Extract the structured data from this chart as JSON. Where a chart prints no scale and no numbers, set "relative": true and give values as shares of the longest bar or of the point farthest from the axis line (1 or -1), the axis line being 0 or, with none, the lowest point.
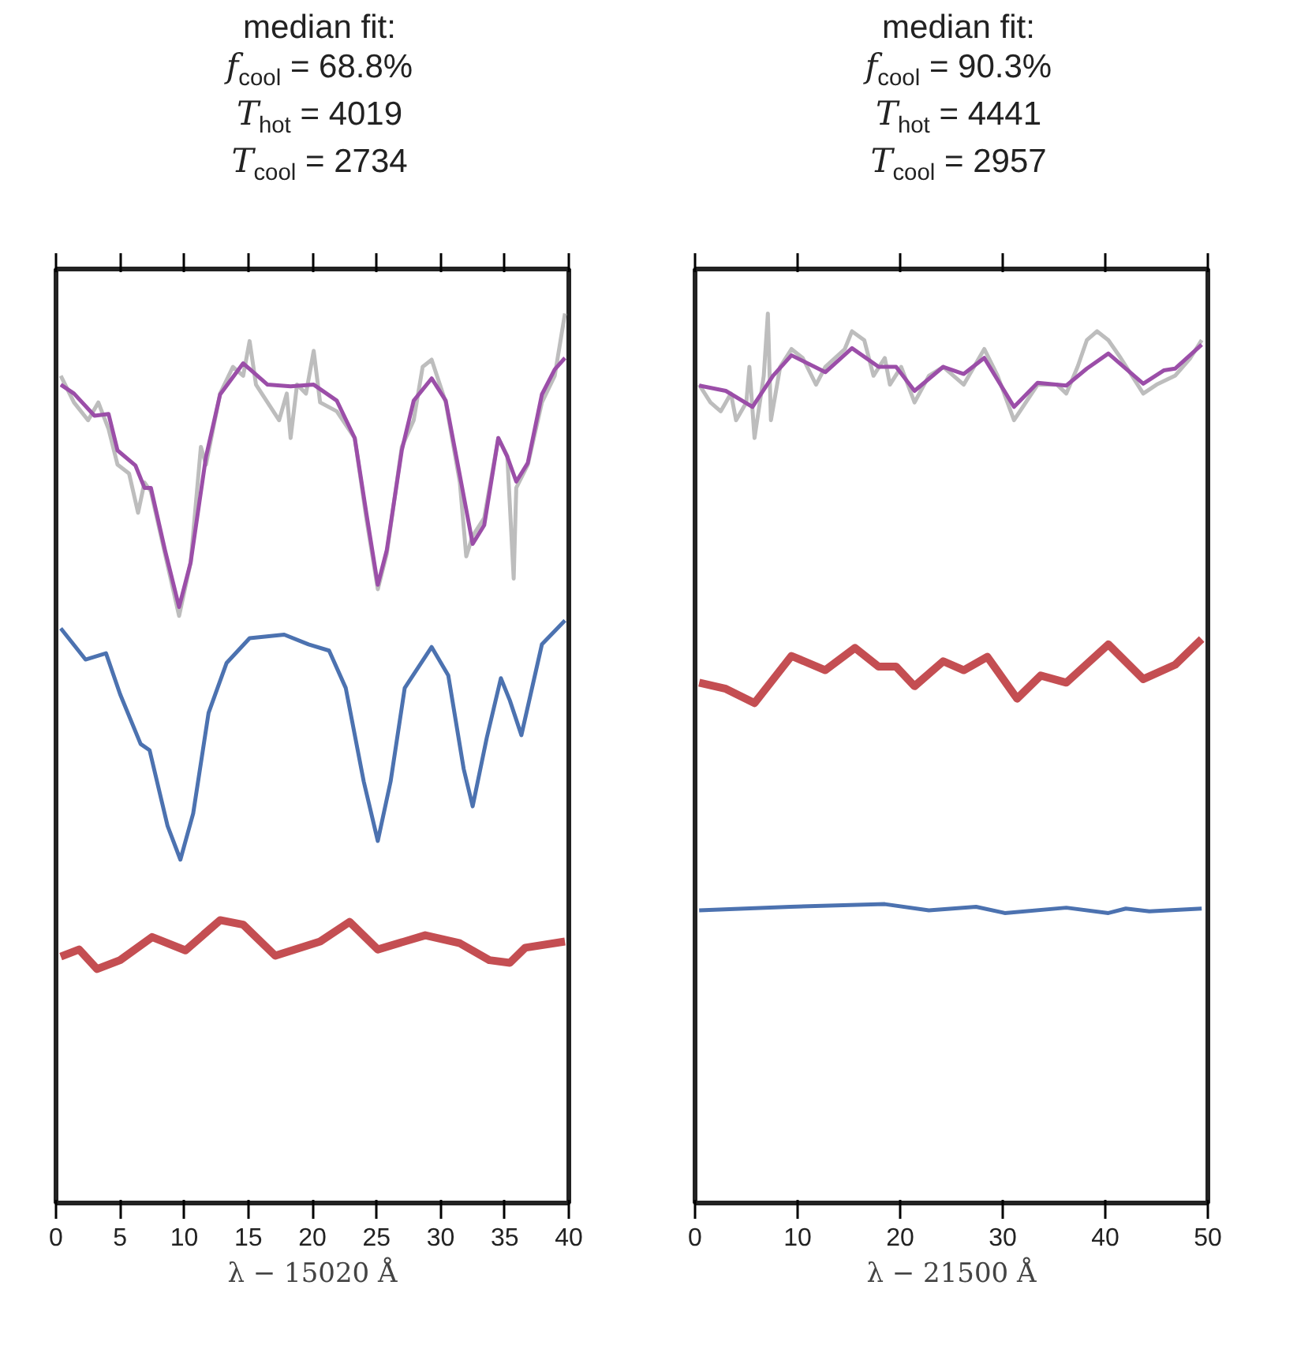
{
  "chart_data": [
    {
      "type": "line",
      "relative": true,
      "title": "median fit:",
      "subtitle": "f$_{cool}$ = 68.8%\nT$_{hot}$ = 4019\nT$_{cool}$ = 2734",
      "xlabel": "λ − 15020 Å",
      "xlim": [
        0,
        40
      ],
      "xticks": [
        0,
        5,
        10,
        15,
        20,
        25,
        30,
        35,
        40
      ],
      "tick_labels": "x",
      "grid": false,
      "series": [
        {
          "color": "#bdbdbd",
          "x": [
            0.37,
            1.4,
            2.5,
            3.3,
            4.1,
            4.8,
            5.7,
            6.4,
            6.9,
            7.4,
            8.5,
            9.6,
            10.5,
            11.3,
            11.7,
            12.8,
            13.8,
            14.6,
            15.1,
            15.6,
            16.5,
            17.4,
            18.0,
            18.3,
            18.8,
            19.5,
            20.1,
            20.6,
            21.9,
            23.3,
            24.2,
            25.1,
            25.8,
            26.97,
            27.9,
            28.6,
            29.3,
            30.4,
            31.5,
            32.0,
            32.5,
            33.4,
            34.5,
            35.2,
            35.7,
            35.9,
            36.8,
            37.9,
            38.9,
            39.7
          ],
          "values": [
            0.93,
            0.9,
            0.88,
            0.9,
            0.87,
            0.83,
            0.82,
            0.776,
            0.81,
            0.8,
            0.73,
            0.66,
            0.72,
            0.85,
            0.83,
            0.91,
            0.94,
            0.93,
            0.969,
            0.92,
            0.9,
            0.88,
            0.91,
            0.86,
            0.92,
            0.91,
            0.958,
            0.9,
            0.89,
            0.86,
            0.77,
            0.69,
            0.73,
            0.85,
            0.88,
            0.94,
            0.948,
            0.9,
            0.81,
            0.727,
            0.75,
            0.77,
            0.86,
            0.84,
            0.702,
            0.804,
            0.83,
            0.9,
            0.93,
            1.0
          ]
        },
        {
          "color": "#9b4ea8",
          "x": [
            0.37,
            1.4,
            3.0,
            4.1,
            4.8,
            6.2,
            6.9,
            7.4,
            8.5,
            9.6,
            10.5,
            11.7,
            12.8,
            14.6,
            16.5,
            18.3,
            20.1,
            21.9,
            23.3,
            24.2,
            25.1,
            25.8,
            26.97,
            27.9,
            29.3,
            30.4,
            31.5,
            32.5,
            33.4,
            34.5,
            35.2,
            35.9,
            36.8,
            37.9,
            38.9,
            39.7
          ],
          "values": [
            0.92,
            0.91,
            0.885,
            0.887,
            0.846,
            0.829,
            0.804,
            0.804,
            0.734,
            0.67,
            0.72,
            0.839,
            0.909,
            0.944,
            0.92,
            0.918,
            0.92,
            0.902,
            0.86,
            0.776,
            0.695,
            0.734,
            0.846,
            0.902,
            0.927,
            0.902,
            0.818,
            0.741,
            0.762,
            0.86,
            0.839,
            0.811,
            0.832,
            0.909,
            0.937,
            0.95
          ]
        },
        {
          "color": "#4c72b0",
          "x": [
            0.37,
            2.3,
            3.9,
            5.0,
            6.6,
            7.3,
            8.7,
            9.7,
            10.7,
            11.9,
            13.3,
            15.1,
            17.8,
            19.7,
            21.3,
            22.6,
            24.0,
            25.1,
            26.1,
            27.2,
            29.3,
            30.6,
            31.8,
            32.5,
            33.6,
            34.7,
            35.4,
            36.3,
            37.9,
            39.7
          ],
          "values": [
            0.646,
            0.611,
            0.618,
            0.572,
            0.516,
            0.509,
            0.424,
            0.386,
            0.438,
            0.551,
            0.607,
            0.635,
            0.639,
            0.628,
            0.621,
            0.579,
            0.474,
            0.407,
            0.474,
            0.579,
            0.625,
            0.593,
            0.488,
            0.446,
            0.523,
            0.59,
            0.565,
            0.526,
            0.628,
            0.655
          ]
        },
        {
          "color": "#c44e52",
          "x": [
            0.37,
            1.8,
            3.2,
            5.0,
            7.5,
            10.1,
            12.8,
            14.6,
            17.1,
            20.6,
            22.9,
            25.1,
            28.8,
            31.5,
            33.8,
            35.4,
            36.6,
            39.7
          ],
          "values": [
            0.277,
            0.285,
            0.263,
            0.273,
            0.299,
            0.284,
            0.318,
            0.313,
            0.278,
            0.294,
            0.316,
            0.285,
            0.301,
            0.292,
            0.273,
            0.27,
            0.287,
            0.294
          ]
        }
      ]
    },
    {
      "type": "line",
      "relative": true,
      "title": "median fit:",
      "subtitle": "f$_{cool}$ = 90.3%\nT$_{hot}$ = 4441\nT$_{cool}$ = 2957",
      "xlabel": "λ − 21500 Å",
      "xlim": [
        0,
        50
      ],
      "xticks": [
        0,
        10,
        20,
        30,
        40,
        50
      ],
      "tick_labels": "x",
      "grid": false,
      "series": [
        {
          "color": "#bdbdbd",
          "x": [
            0.4,
            1.5,
            2.5,
            3.5,
            4.0,
            5.0,
            5.3,
            5.8,
            6.7,
            7.1,
            7.4,
            8.3,
            9.4,
            10.5,
            11.8,
            12.7,
            14.6,
            15.3,
            16.5,
            17.4,
            18.5,
            19.0,
            20.1,
            21.4,
            22.8,
            24.2,
            26.2,
            28.2,
            29.5,
            31.1,
            33.4,
            35.3,
            36.2,
            37.3,
            38.2,
            39.2,
            40.3,
            41.5,
            43.7,
            45.0,
            46.8,
            48.3,
            49.4
          ],
          "values": [
            0.92,
            0.9,
            0.89,
            0.91,
            0.88,
            0.9,
            0.94,
            0.86,
            0.93,
            1.0,
            0.88,
            0.94,
            0.96,
            0.95,
            0.92,
            0.94,
            0.96,
            0.98,
            0.97,
            0.93,
            0.95,
            0.92,
            0.94,
            0.9,
            0.93,
            0.94,
            0.92,
            0.96,
            0.93,
            0.88,
            0.92,
            0.92,
            0.91,
            0.94,
            0.97,
            0.98,
            0.97,
            0.95,
            0.91,
            0.92,
            0.93,
            0.95,
            0.97
          ]
        },
        {
          "color": "#9b4ea8",
          "x": [
            0.4,
            3.0,
            5.6,
            7.6,
            9.4,
            12.7,
            15.3,
            17.9,
            19.6,
            21.4,
            24.2,
            26.2,
            28.2,
            31.1,
            33.4,
            36.2,
            38.2,
            40.3,
            43.7,
            45.7,
            46.8,
            49.4
          ],
          "values": [
            0.919,
            0.913,
            0.895,
            0.93,
            0.953,
            0.934,
            0.961,
            0.94,
            0.94,
            0.913,
            0.94,
            0.932,
            0.95,
            0.895,
            0.922,
            0.919,
            0.938,
            0.955,
            0.921,
            0.936,
            0.938,
            0.965
          ]
        },
        {
          "color": "#c44e52",
          "x": [
            0.4,
            3.0,
            5.8,
            9.4,
            12.7,
            15.6,
            17.9,
            19.6,
            21.4,
            24.2,
            26.2,
            28.5,
            31.4,
            33.7,
            36.2,
            40.3,
            43.7,
            46.8,
            49.4
          ],
          "values": [
            0.585,
            0.578,
            0.562,
            0.615,
            0.599,
            0.624,
            0.603,
            0.603,
            0.581,
            0.609,
            0.599,
            0.614,
            0.567,
            0.593,
            0.585,
            0.628,
            0.589,
            0.605,
            0.634
          ]
        },
        {
          "color": "#4c72b0",
          "x": [
            0.4,
            9.3,
            18.5,
            22.8,
            27.4,
            30.2,
            36.2,
            40.3,
            42.0,
            44.3,
            49.4
          ],
          "values": [
            0.329,
            0.333,
            0.336,
            0.329,
            0.333,
            0.326,
            0.332,
            0.326,
            0.331,
            0.328,
            0.331
          ]
        }
      ]
    }
  ]
}
